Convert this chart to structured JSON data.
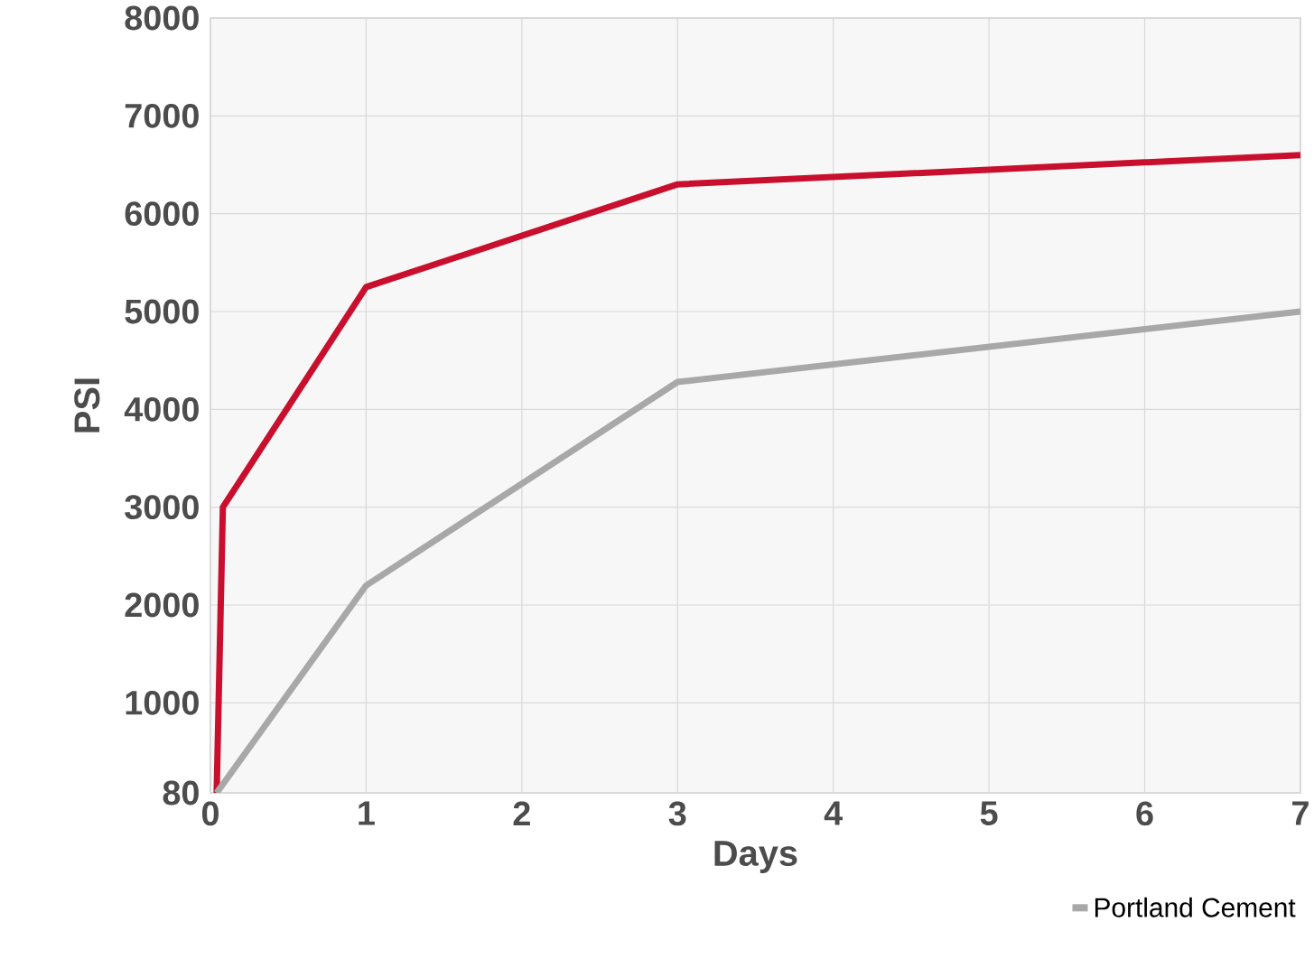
{
  "chart_data": {
    "type": "line",
    "xlabel": "Days",
    "ylabel": "PSI",
    "xlim": [
      0,
      7
    ],
    "ylim": [
      80,
      8000
    ],
    "xticks": [
      0,
      1,
      2,
      3,
      4,
      5,
      6,
      7
    ],
    "yticks": [
      80,
      1000,
      2000,
      3000,
      4000,
      5000,
      6000,
      7000,
      8000
    ],
    "grid": true,
    "legend": "bottom right",
    "series": [
      {
        "color": "#c8102e",
        "x": [
          0.04,
          0.08,
          1,
          3,
          7
        ],
        "values": [
          80,
          3000,
          5250,
          6300,
          6600
        ]
      },
      {
        "name": "Portland Cement",
        "color": "#a8a8a8",
        "x": [
          0.04,
          1,
          3,
          7
        ],
        "values": [
          80,
          2200,
          4280,
          5000
        ]
      }
    ]
  }
}
